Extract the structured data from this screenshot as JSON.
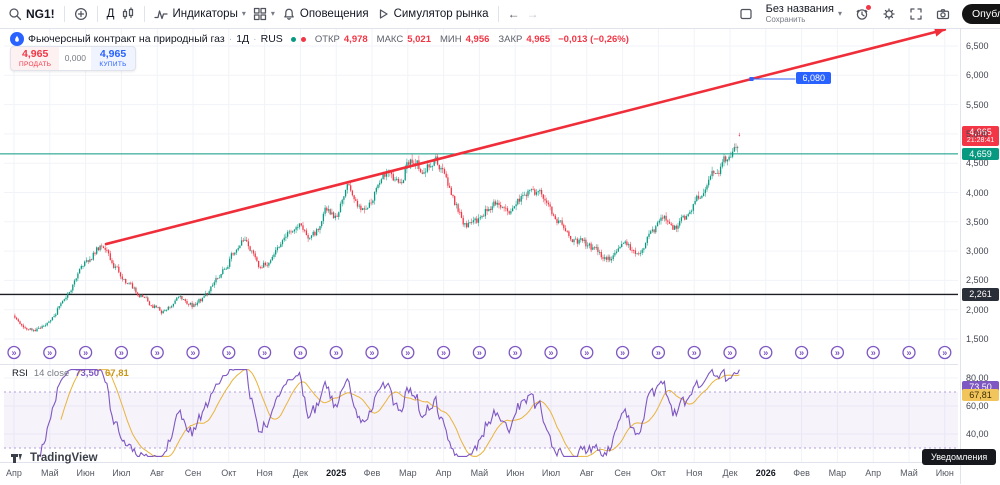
{
  "toolbar": {
    "symbol": "NG1!",
    "interval": "Д",
    "indicators": "Индикаторы",
    "alerts": "Оповещения",
    "simulator": "Симулятор рынка",
    "layout_name": "Без названия",
    "save": "Сохранить",
    "publish": "Опубликовать"
  },
  "legend": {
    "title": "Фьючерсный контракт на природный газ",
    "interval": "1Д",
    "market": "RUS",
    "ohlc": [
      {
        "label": "ОТКР",
        "value": "4,978"
      },
      {
        "label": "МАКС",
        "value": "5,021"
      },
      {
        "label": "МИН",
        "value": "4,956"
      },
      {
        "label": "ЗАКР",
        "value": "4,965"
      }
    ],
    "change": "−0,013 (−0,26%)"
  },
  "trade": {
    "sell_price": "4,965",
    "sell_label": "ПРОДАТЬ",
    "spread": "0,000",
    "buy_price": "4,965",
    "buy_label": "КУПИТЬ"
  },
  "axis": {
    "last_price": "4,965",
    "countdown": "21:28:41",
    "green_level": "4,659",
    "black_level": "2,261",
    "trend_value": "6,080"
  },
  "rsi": {
    "name": "RSI",
    "params": "14 close",
    "value": "73,50",
    "ma_value": "67,81"
  },
  "time_axis": {
    "labels": [
      "Апр",
      "Май",
      "Июн",
      "Июл",
      "Авг",
      "Сен",
      "Окт",
      "Ноя",
      "Дек",
      "2025",
      "Фев",
      "Мар",
      "Апр",
      "Май",
      "Июн",
      "Июл",
      "Авг",
      "Сен",
      "Окт",
      "Ноя",
      "Дек",
      "2026",
      "Фев",
      "Мар",
      "Апр",
      "Май",
      "Июн"
    ]
  },
  "footer": {
    "logo_text": "TradingView",
    "tooltip": "Уведомления"
  },
  "chart_data": {
    "type": "candlestick",
    "symbol": "NG1!",
    "title": "Фьючерсный контракт на природный газ · 1Д · RUS",
    "last_bar": {
      "open": 4.978,
      "high": 5.021,
      "low": 4.956,
      "close": 4.965,
      "change": -0.013,
      "change_pct": -0.26
    },
    "price_ticks": [
      6.5,
      6.0,
      5.5,
      5.0,
      4.5,
      4.0,
      3.5,
      3.0,
      2.5,
      2.0,
      1.5
    ],
    "levels": {
      "last": 4.965,
      "green_line": 4.659,
      "black_line": 2.261,
      "trend_value_label": 6.08
    },
    "x_range": [
      "2024-04",
      "2026-06"
    ],
    "bars_per_month": 21,
    "candles_end_month": 20.3,
    "anchors": [
      [
        0,
        1.9
      ],
      [
        0.4,
        1.62
      ],
      [
        0.9,
        1.75
      ],
      [
        1.5,
        2.3
      ],
      [
        2.0,
        2.85
      ],
      [
        2.4,
        3.1
      ],
      [
        2.8,
        2.75
      ],
      [
        3.3,
        2.35
      ],
      [
        3.8,
        2.1
      ],
      [
        4.2,
        1.95
      ],
      [
        4.6,
        2.25
      ],
      [
        5.0,
        2.05
      ],
      [
        5.4,
        2.3
      ],
      [
        5.9,
        2.75
      ],
      [
        6.4,
        3.3
      ],
      [
        6.8,
        2.7
      ],
      [
        7.2,
        2.85
      ],
      [
        7.6,
        3.25
      ],
      [
        8.0,
        3.45
      ],
      [
        8.3,
        3.15
      ],
      [
        8.7,
        3.7
      ],
      [
        9.0,
        3.55
      ],
      [
        9.3,
        4.2
      ],
      [
        9.6,
        3.65
      ],
      [
        10.0,
        3.95
      ],
      [
        10.4,
        4.4
      ],
      [
        10.7,
        4.05
      ],
      [
        11.1,
        4.65
      ],
      [
        11.4,
        4.35
      ],
      [
        11.8,
        4.55
      ],
      [
        12.2,
        3.95
      ],
      [
        12.6,
        3.45
      ],
      [
        13.0,
        3.55
      ],
      [
        13.4,
        3.85
      ],
      [
        13.8,
        3.55
      ],
      [
        14.2,
        3.95
      ],
      [
        14.6,
        4.05
      ],
      [
        15.0,
        3.65
      ],
      [
        15.4,
        3.35
      ],
      [
        15.8,
        3.15
      ],
      [
        16.2,
        3.0
      ],
      [
        16.6,
        2.85
      ],
      [
        17.0,
        3.1
      ],
      [
        17.4,
        2.95
      ],
      [
        17.8,
        3.3
      ],
      [
        18.2,
        3.6
      ],
      [
        18.5,
        3.35
      ],
      [
        18.9,
        3.75
      ],
      [
        19.3,
        4.1
      ],
      [
        19.7,
        4.45
      ],
      [
        20.0,
        4.7
      ],
      [
        20.3,
        4.965
      ]
    ],
    "trendline": {
      "month1": 2.57,
      "price1": 3.12,
      "month2": 26.0,
      "price2": 6.78,
      "color": "#ef2e3a",
      "value_label_month": 20.6
    },
    "colors": {
      "up": "#089981",
      "down": "#f23645",
      "rsi": "#7e57c2",
      "rsi_ma": "#e9b33c",
      "green_line": "#089981",
      "black_line": "#1c1e24",
      "blue": "#2962ff"
    },
    "indicator": {
      "type": "rsi",
      "length": 14,
      "source": "close",
      "last": 73.5,
      "ma_last": 67.81,
      "bands": [
        70,
        30
      ],
      "axis_ticks": [
        80,
        60,
        40
      ]
    },
    "contract_marker_months": 27
  }
}
